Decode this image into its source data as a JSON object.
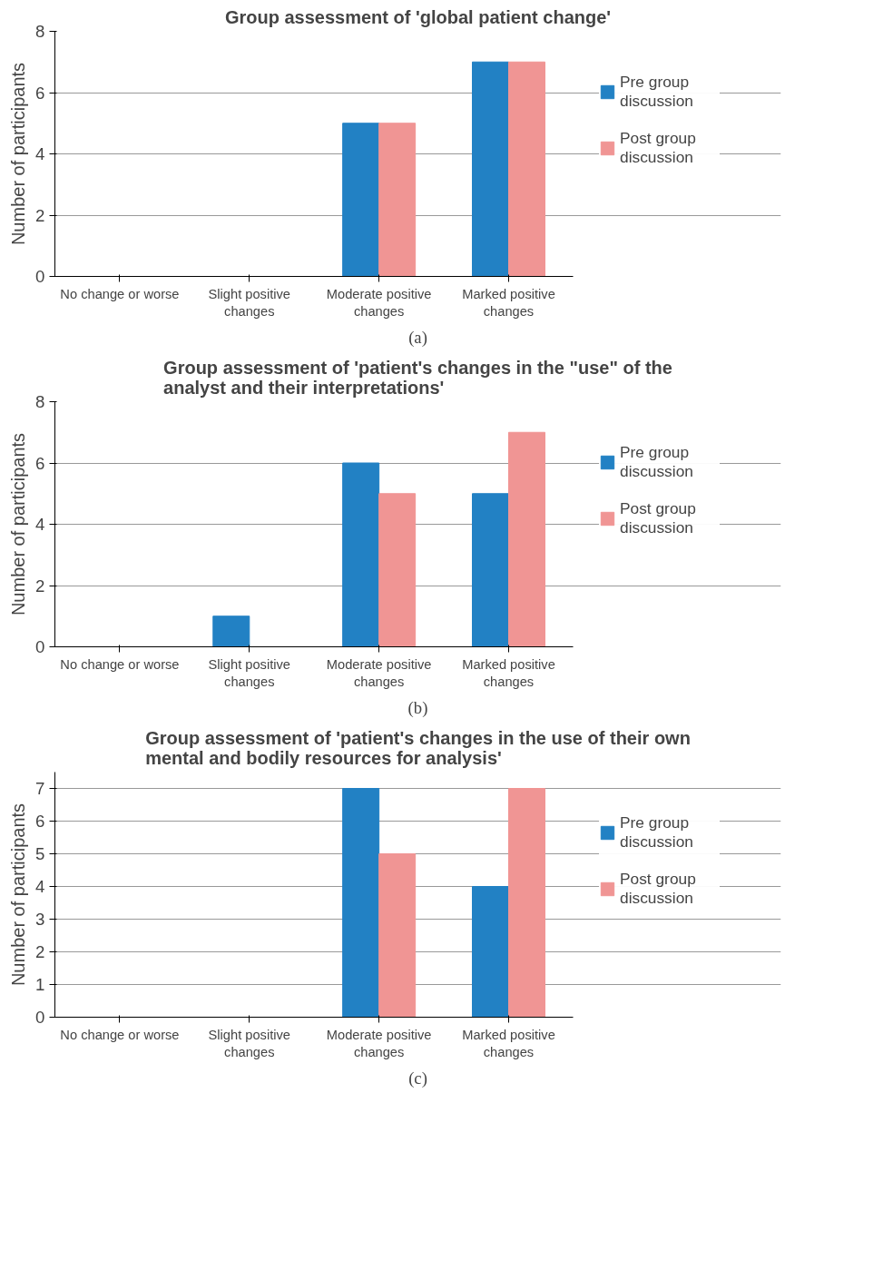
{
  "chart_data": [
    {
      "type": "bar",
      "title": "Group assessment of 'global patient change'",
      "ylabel": "Number of participants",
      "categories": [
        "No change or worse",
        "Slight positive changes",
        "Moderate positive changes",
        "Marked positive changes"
      ],
      "series": [
        {
          "name": "Pre group discussion",
          "color": "#2281c4",
          "values": [
            0,
            0,
            5,
            7
          ]
        },
        {
          "name": "Post group discussion",
          "color": "#f09594",
          "values": [
            0,
            0,
            5,
            7
          ]
        }
      ],
      "ylim": [
        0,
        8
      ],
      "yticks": [
        0,
        2,
        4,
        6,
        8
      ],
      "grid": "y",
      "legend": "right",
      "annotations": [
        "(a)"
      ]
    },
    {
      "type": "bar",
      "title": "Group assessment of 'patient's changes in the \"use\" of the analyst and their interpretations'",
      "ylabel": "Number of participants",
      "categories": [
        "No change or worse",
        "Slight positive changes",
        "Moderate positive changes",
        "Marked positive changes"
      ],
      "series": [
        {
          "name": "Pre group discussion",
          "color": "#2281c4",
          "values": [
            0,
            1,
            6,
            5
          ]
        },
        {
          "name": "Post group discussion",
          "color": "#f09594",
          "values": [
            0,
            0,
            5,
            7
          ]
        }
      ],
      "ylim": [
        0,
        8
      ],
      "yticks": [
        0,
        2,
        4,
        6,
        8
      ],
      "grid": "y",
      "legend": "right",
      "annotations": [
        "(b)"
      ]
    },
    {
      "type": "bar",
      "title": "Group assessment of 'patient's changes in the use of their own mental and bodily resources for analysis'",
      "ylabel": "Number of participants",
      "categories": [
        "No change or worse",
        "Slight positive changes",
        "Moderate positive changes",
        "Marked positive changes"
      ],
      "series": [
        {
          "name": "Pre group discussion",
          "color": "#2281c4",
          "values": [
            0,
            0,
            7,
            4
          ]
        },
        {
          "name": "Post group discussion",
          "color": "#f09594",
          "values": [
            0,
            0,
            5,
            7
          ]
        }
      ],
      "ylim": [
        0,
        7.5
      ],
      "yticks": [
        0,
        1,
        2,
        3,
        4,
        5,
        6,
        7
      ],
      "grid": "y",
      "legend": "right",
      "annotations": [
        "(c)"
      ]
    }
  ]
}
